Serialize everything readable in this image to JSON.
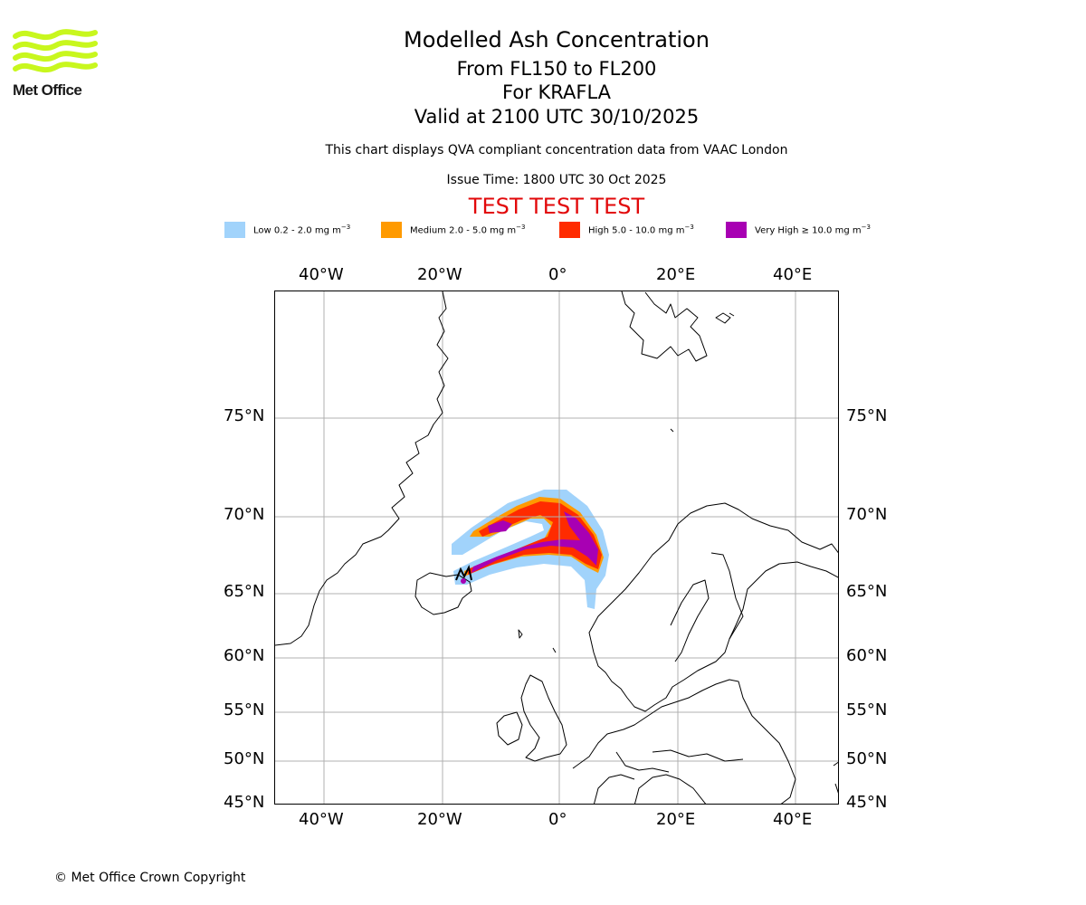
{
  "logo": {
    "text": "Met Office",
    "color": "#c8f71e"
  },
  "header": {
    "title": "Modelled Ash Concentration",
    "flight_levels": "From FL150 to FL200",
    "volcano": "For KRAFLA",
    "valid_time": "Valid at 2100 UTC 30/10/2025",
    "info": "This chart displays QVA compliant concentration data from VAAC London",
    "issue_time": "Issue Time: 1800 UTC 30 Oct 2025",
    "test_banner": "TEST TEST TEST"
  },
  "legend": [
    {
      "label": "Low 0.2 - 2.0 mg m",
      "unit_exp": "−3",
      "color": "#a1d3fb"
    },
    {
      "label": "Medium 2.0 - 5.0 mg m",
      "unit_exp": "−3",
      "color": "#ff9a00"
    },
    {
      "label": "High 5.0 - 10.0 mg m",
      "unit_exp": "−3",
      "color": "#ff2b00"
    },
    {
      "label": "Very High ≥ 10.0 mg m",
      "unit_exp": "−3",
      "color": "#a800b3"
    }
  ],
  "map": {
    "longitude_ticks": [
      "40°W",
      "20°W",
      "0°",
      "20°E",
      "40°E"
    ],
    "latitude_ticks": [
      "75°N",
      "70°N",
      "65°N",
      "60°N",
      "55°N",
      "50°N",
      "45°N"
    ],
    "grid": true,
    "coastline_color": "#000000",
    "grid_color": "#b0b0b0"
  },
  "footer": {
    "copyright": "© Met Office Crown Copyright"
  }
}
